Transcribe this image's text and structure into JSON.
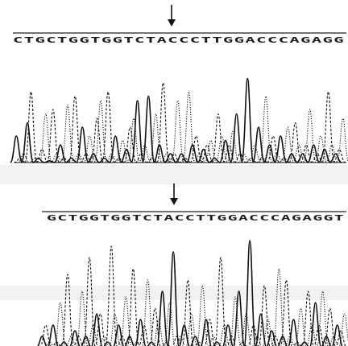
{
  "colors": {
    "trace": "#111111",
    "background": "#ffffff"
  },
  "chart_data": [
    {
      "type": "line",
      "sequence": "CTGCTGGTGGTCTACCCTTGGACCCAGAGG",
      "marked_position": 12,
      "series": [
        {
          "style": "solid",
          "values": [
            0.3,
            0.45,
            0.05,
            0.02,
            0.2,
            0.05,
            0.4,
            0.1,
            0.05,
            0.3,
            0.15,
            0.7,
            0.75,
            0.2,
            0.1,
            0.1,
            0.2,
            0.15,
            0.05,
            0.25,
            0.55,
            0.95,
            0.4,
            0.2,
            0.3,
            0.1,
            0.1,
            0.2,
            0.15,
            0.1
          ]
        },
        {
          "style": "dashed",
          "values": [
            0.05,
            0.8,
            0.15,
            0.6,
            0.05,
            0.75,
            0.1,
            0.5,
            0.8,
            0.05,
            0.4,
            0.1,
            0.05,
            0.9,
            0.1,
            0.05,
            0.3,
            0.2,
            0.55,
            0.2,
            0.1,
            0.05,
            0.05,
            0.3,
            0.05,
            0.45,
            0.2,
            0.1,
            0.8,
            0.15
          ]
        },
        {
          "style": "dotted",
          "values": [
            0.1,
            0.05,
            0.55,
            0.1,
            0.65,
            0.1,
            0.3,
            0.7,
            0.1,
            0.25,
            0.5,
            0.2,
            0.55,
            0.1,
            0.7,
            0.8,
            0.1,
            0.25,
            0.3,
            0.35,
            0.1,
            0.2,
            0.75,
            0.1,
            0.4,
            0.2,
            0.6,
            0.3,
            0.2,
            0.5
          ]
        }
      ]
    },
    {
      "type": "line",
      "sequence": "GCTGGTGGTCTACCTTGGACCCAGAGGT",
      "marked_position": 10,
      "series": [
        {
          "style": "solid",
          "values": [
            0.1,
            0.2,
            0.05,
            0.15,
            0.1,
            0.3,
            0.05,
            0.2,
            0.1,
            0.25,
            0.05,
            0.5,
            0.85,
            0.2,
            0.1,
            0.25,
            0.05,
            0.2,
            0.5,
            0.95,
            0.3,
            0.15,
            0.1,
            0.25,
            0.05,
            0.4,
            0.1,
            0.2
          ]
        },
        {
          "style": "dashed",
          "values": [
            0.2,
            0.05,
            0.65,
            0.1,
            0.8,
            0.3,
            0.9,
            0.1,
            0.7,
            0.2,
            0.35,
            0.05,
            0.1,
            0.6,
            0.05,
            0.25,
            0.8,
            0.1,
            0.05,
            0.2,
            0.55,
            0.1,
            0.6,
            0.05,
            0.5,
            0.2,
            0.35,
            0.15
          ]
        },
        {
          "style": "dotted",
          "values": [
            0.05,
            0.4,
            0.1,
            0.5,
            0.2,
            0.1,
            0.3,
            0.45,
            0.05,
            0.6,
            0.25,
            0.4,
            0.1,
            0.3,
            0.55,
            0.1,
            0.2,
            0.45,
            0.3,
            0.1,
            0.25,
            0.7,
            0.1,
            0.35,
            0.2,
            0.5,
            0.1,
            0.3
          ]
        }
      ]
    }
  ]
}
